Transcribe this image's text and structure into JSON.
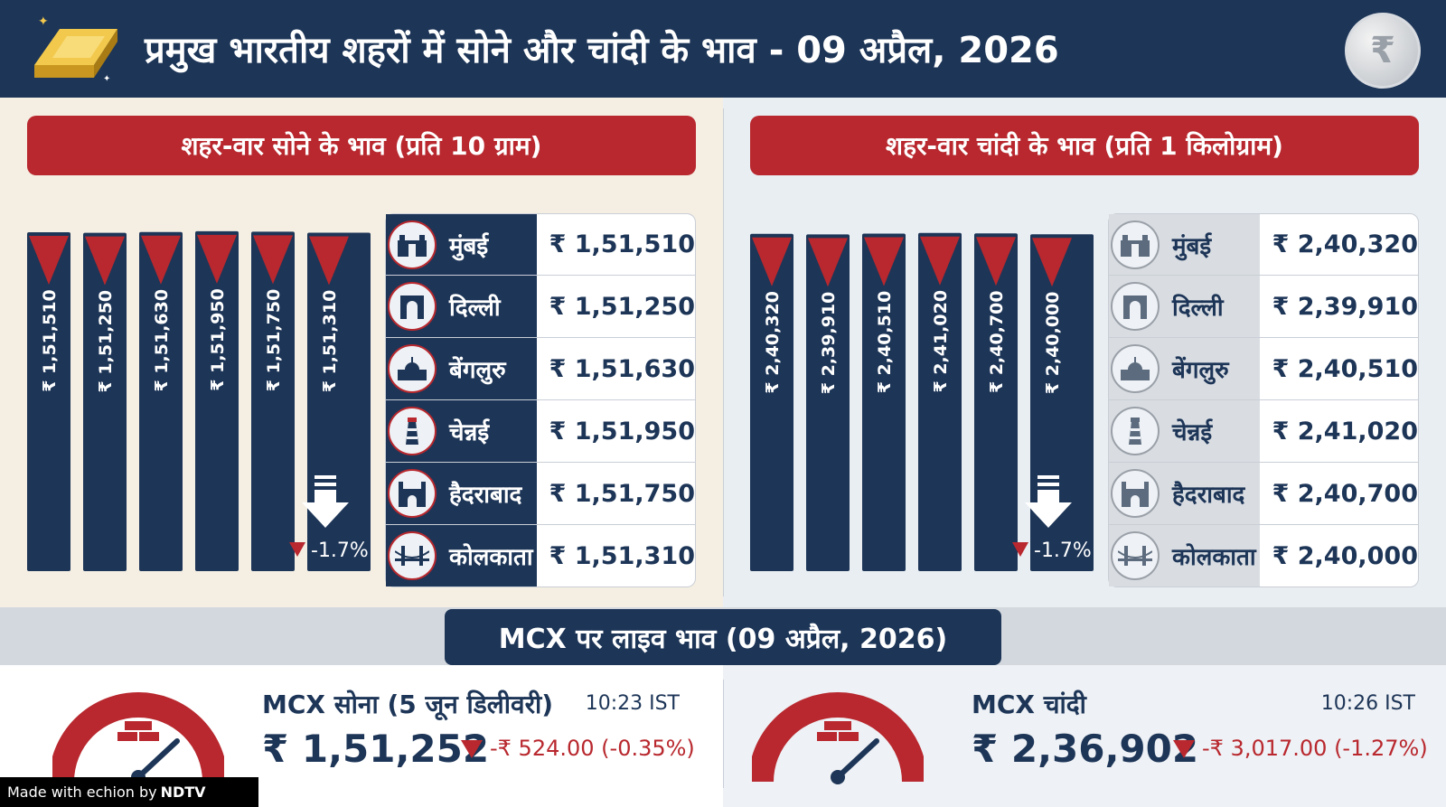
{
  "header": {
    "title": "प्रमुख भारतीय शहरों में सोने और चांदी के भाव - 09 अप्रैल, 2026",
    "coin_symbol": "₹"
  },
  "gold_section": {
    "title": "शहर-वार सोने के भाव (प्रति 10 ग्राम)",
    "change_label": "-1.7%",
    "cities": [
      {
        "name": "मुंबई",
        "price": "₹ 1,51,510",
        "icon": "gateway-icon"
      },
      {
        "name": "दिल्ली",
        "price": "₹ 1,51,250",
        "icon": "india-gate-icon"
      },
      {
        "name": "बेंगलुरु",
        "price": "₹ 1,51,630",
        "icon": "palace-icon"
      },
      {
        "name": "चेन्नई",
        "price": "₹ 1,51,950",
        "icon": "lighthouse-icon"
      },
      {
        "name": "हैदराबाद",
        "price": "₹ 1,51,750",
        "icon": "charminar-icon"
      },
      {
        "name": "कोलकाता",
        "price": "₹ 1,51,310",
        "icon": "bridge-icon"
      }
    ]
  },
  "silver_section": {
    "title": "शहर-वार चांदी के भाव (प्रति 1 किलोग्राम)",
    "change_label": "-1.7%",
    "cities": [
      {
        "name": "मुंबई",
        "price": "₹ 2,40,320",
        "icon": "gateway-icon"
      },
      {
        "name": "दिल्ली",
        "price": "₹ 2,39,910",
        "icon": "india-gate-icon"
      },
      {
        "name": "बेंगलुरु",
        "price": "₹ 2,40,510",
        "icon": "palace-icon"
      },
      {
        "name": "चेन्नई",
        "price": "₹ 2,41,020",
        "icon": "lighthouse-icon"
      },
      {
        "name": "हैदराबाद",
        "price": "₹ 2,40,700",
        "icon": "charminar-icon"
      },
      {
        "name": "कोलकाता",
        "price": "₹ 2,40,000",
        "icon": "bridge-icon"
      }
    ]
  },
  "chart_data": [
    {
      "type": "bar",
      "categories": [
        "मुंबई",
        "दिल्ली",
        "बेंगलुरु",
        "चेन्नई",
        "हैदराबाद",
        "कोलकाता"
      ],
      "values": [
        151510,
        151250,
        151630,
        151950,
        151750,
        151310
      ],
      "value_labels": [
        "₹ 1,51,510",
        "₹ 1,51,250",
        "₹ 1,51,630",
        "₹ 1,51,950",
        "₹ 1,51,750",
        "₹ 1,51,310"
      ],
      "title": "शहर-वार सोने के भाव (प्रति 10 ग्राम)",
      "annotation": "-1.7%",
      "ylim": [
        0,
        160000
      ]
    },
    {
      "type": "bar",
      "categories": [
        "मुंबई",
        "दिल्ली",
        "बेंगलुरु",
        "चेन्नई",
        "हैदराबाद",
        "कोलकाता"
      ],
      "values": [
        240320,
        239910,
        240510,
        241020,
        240700,
        240000
      ],
      "value_labels": [
        "₹ 2,40,320",
        "₹ 2,39,910",
        "₹ 2,40,510",
        "₹ 2,41,020",
        "₹ 2,40,700",
        "₹ 2,40,000"
      ],
      "title": "शहर-वार चांदी के भाव (प्रति 1 किलोग्राम)",
      "annotation": "-1.7%",
      "ylim": [
        0,
        255000
      ]
    }
  ],
  "mcx": {
    "title": "MCX पर लाइव भाव (09 अप्रैल, 2026)",
    "gold": {
      "name": "MCX सोना (5 जून डिलीवरी)",
      "time": "10:23 IST",
      "price": "₹ 1,51,252",
      "change": "-₹ 524.00 (-0.35%)"
    },
    "silver": {
      "name": "MCX चांदी",
      "time": "10:26 IST",
      "price": "₹ 2,36,902",
      "change": "-₹ 3,017.00 (-1.27%)"
    }
  },
  "footer": {
    "prefix": "Made with echion by",
    "brand": "NDTV"
  },
  "colors": {
    "navy": "#1d3557",
    "red": "#b8282e",
    "gold": "#e8b830"
  }
}
